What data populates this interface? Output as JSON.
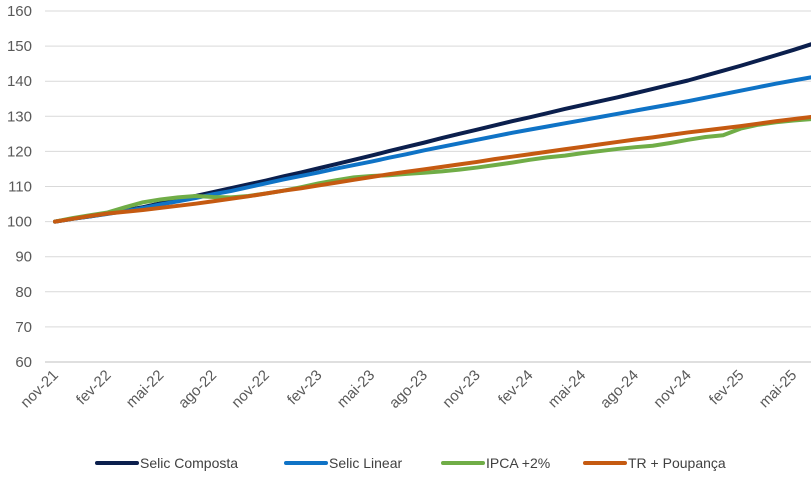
{
  "chart_data": {
    "type": "line",
    "title": "",
    "xlabel": "",
    "ylabel": "",
    "ylim": [
      60,
      160
    ],
    "y_ticks": [
      60,
      70,
      80,
      90,
      100,
      110,
      120,
      130,
      140,
      150,
      160
    ],
    "grid": "horizontal",
    "legend_position": "bottom",
    "x": [
      "nov-21",
      "dez-21",
      "jan-22",
      "fev-22",
      "mar-22",
      "abr-22",
      "mai-22",
      "jun-22",
      "jul-22",
      "ago-22",
      "set-22",
      "out-22",
      "nov-22",
      "dez-22",
      "jan-23",
      "fev-23",
      "mar-23",
      "abr-23",
      "mai-23",
      "jun-23",
      "jul-23",
      "ago-23",
      "set-23",
      "out-23",
      "nov-23",
      "dez-23",
      "jan-24",
      "fev-24",
      "mar-24",
      "abr-24",
      "mai-24",
      "jun-24",
      "jul-24",
      "ago-24",
      "set-24",
      "out-24",
      "nov-24",
      "dez-24",
      "jan-25",
      "fev-25",
      "mar-25",
      "abr-25",
      "mai-25",
      "jun-25"
    ],
    "x_tick_labels": [
      "nov-21",
      "fev-22",
      "mai-22",
      "ago-22",
      "nov-22",
      "fev-23",
      "mai-23",
      "ago-23",
      "nov-23",
      "fev-24",
      "mai-24",
      "ago-24",
      "nov-24",
      "fev-25",
      "mai-25"
    ],
    "series": [
      {
        "name": "Selic Composta",
        "color": "#0b1f4d",
        "values": [
          100.0,
          100.8,
          101.5,
          102.3,
          103.2,
          104.1,
          105.2,
          106.2,
          107.3,
          108.4,
          109.5,
          110.6,
          111.7,
          112.9,
          114.0,
          115.2,
          116.4,
          117.6,
          118.8,
          120.1,
          121.3,
          122.5,
          123.8,
          125.0,
          126.2,
          127.4,
          128.6,
          129.7,
          130.9,
          132.1,
          133.2,
          134.3,
          135.4,
          136.6,
          137.8,
          139.0,
          140.2,
          141.6,
          143.0,
          144.4,
          145.9,
          147.4,
          148.9,
          150.5
        ]
      },
      {
        "name": "Selic Linear",
        "color": "#0f73c6",
        "values": [
          100.0,
          100.8,
          101.5,
          102.2,
          103.0,
          103.9,
          104.9,
          105.8,
          106.7,
          107.8,
          108.7,
          109.8,
          110.9,
          112.0,
          113.0,
          114.0,
          115.1,
          116.1,
          117.1,
          118.2,
          119.2,
          120.3,
          121.3,
          122.3,
          123.3,
          124.3,
          125.3,
          126.2,
          127.1,
          128.0,
          128.9,
          129.8,
          130.7,
          131.6,
          132.5,
          133.4,
          134.3,
          135.3,
          136.3,
          137.3,
          138.3,
          139.3,
          140.2,
          141.1
        ]
      },
      {
        "name": "IPCA +2%",
        "color": "#70ad47",
        "values": [
          100.0,
          101.0,
          101.8,
          102.6,
          104.1,
          105.5,
          106.3,
          106.9,
          107.3,
          107.0,
          106.9,
          107.3,
          108.0,
          108.8,
          109.8,
          110.9,
          111.8,
          112.6,
          113.0,
          113.2,
          113.6,
          113.9,
          114.3,
          114.8,
          115.4,
          116.1,
          116.8,
          117.6,
          118.3,
          118.8,
          119.5,
          120.1,
          120.7,
          121.2,
          121.6,
          122.4,
          123.3,
          124.1,
          124.6,
          126.5,
          127.6,
          128.3,
          128.8,
          129.2
        ]
      },
      {
        "name": "TR + Poupança",
        "color": "#c55a11",
        "values": [
          100.0,
          100.8,
          101.6,
          102.3,
          102.8,
          103.3,
          103.9,
          104.5,
          105.1,
          105.8,
          106.5,
          107.2,
          108.0,
          108.8,
          109.5,
          110.3,
          111.1,
          111.9,
          112.7,
          113.5,
          114.2,
          114.9,
          115.6,
          116.3,
          117.0,
          117.8,
          118.5,
          119.2,
          119.9,
          120.6,
          121.3,
          122.0,
          122.7,
          123.4,
          124.0,
          124.7,
          125.4,
          126.0,
          126.6,
          127.2,
          127.9,
          128.6,
          129.2,
          129.8
        ]
      }
    ]
  }
}
